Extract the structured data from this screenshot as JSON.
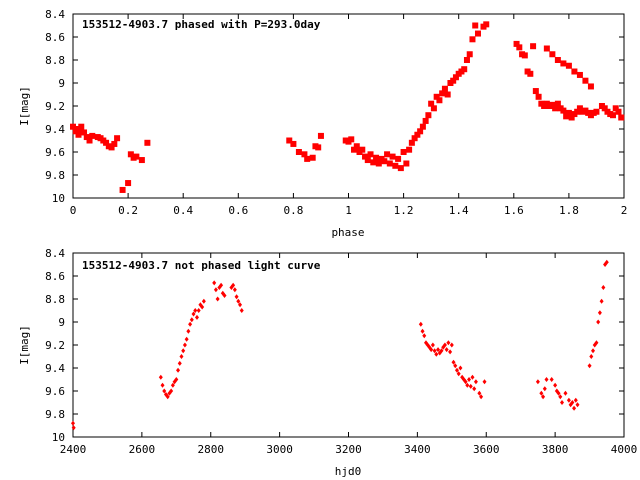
{
  "chart_data": [
    {
      "type": "scatter",
      "title": "153512-4903.7 phased with P=293.0day",
      "xlabel": "phase",
      "ylabel": "I[mag]",
      "xlim": [
        0,
        2
      ],
      "ylim": [
        8.4,
        10
      ],
      "y_inverted": true,
      "xticks": [
        "0",
        "0.2",
        "0.4",
        "0.6",
        "0.8",
        "1",
        "1.2",
        "1.4",
        "1.6",
        "1.8",
        "2"
      ],
      "yticks": [
        "8.4",
        "8.6",
        "8.8",
        "9",
        "9.2",
        "9.4",
        "9.6",
        "9.8",
        "10"
      ],
      "marker_color": "#ff0000",
      "marker_shape": "plus-square",
      "series": [
        {
          "x": [
            0.0,
            0.01,
            0.02,
            0.02,
            0.03,
            0.04,
            0.05,
            0.06,
            0.07,
            0.09,
            0.1,
            0.11,
            0.12,
            0.13,
            0.14,
            0.15,
            0.16,
            0.18,
            0.2,
            0.21,
            0.22,
            0.23,
            0.25,
            0.27,
            0.785,
            0.8,
            0.82,
            0.84,
            0.85,
            0.87,
            0.88,
            0.89,
            0.9,
            0.99,
            1.0,
            1.01,
            1.02,
            1.03,
            1.04,
            1.05,
            1.06,
            1.07,
            1.08,
            1.09,
            1.1,
            1.11,
            1.12,
            1.13,
            1.14,
            1.15,
            1.16,
            1.17,
            1.18,
            1.19,
            1.2,
            1.21,
            1.22,
            1.23,
            1.24,
            1.25,
            1.26,
            1.27,
            1.28,
            1.29,
            1.3,
            1.31,
            1.32,
            1.33,
            1.34,
            1.35,
            1.36,
            1.37,
            1.38,
            1.39,
            1.4,
            1.41,
            1.42,
            1.43,
            1.44,
            1.45,
            1.46,
            1.47,
            1.49,
            1.5,
            1.61,
            1.62,
            1.63,
            1.64,
            1.65,
            1.66,
            1.67,
            1.68,
            1.69,
            1.7,
            1.71,
            1.72,
            1.73,
            1.74,
            1.75,
            1.76,
            1.77,
            1.78,
            1.79,
            1.8,
            1.81,
            1.82,
            1.83,
            1.84,
            1.85,
            1.86,
            1.87,
            1.88,
            1.89,
            1.9,
            1.92,
            1.93,
            1.94,
            1.95,
            1.96,
            1.97,
            1.98,
            1.99,
            1.72,
            1.74,
            1.76,
            1.78,
            1.8,
            1.82,
            1.84,
            1.86,
            1.88
          ],
          "y": [
            9.38,
            9.42,
            9.4,
            9.45,
            9.38,
            9.43,
            9.47,
            9.5,
            9.46,
            9.47,
            9.48,
            9.5,
            9.52,
            9.55,
            9.56,
            9.53,
            9.48,
            9.93,
            9.87,
            9.62,
            9.65,
            9.64,
            9.67,
            9.52,
            9.5,
            9.53,
            9.6,
            9.62,
            9.66,
            9.65,
            9.55,
            9.56,
            9.46,
            9.5,
            9.51,
            9.49,
            9.58,
            9.55,
            9.6,
            9.58,
            9.64,
            9.67,
            9.62,
            9.69,
            9.65,
            9.7,
            9.66,
            9.68,
            9.62,
            9.7,
            9.64,
            9.72,
            9.66,
            9.74,
            9.6,
            9.7,
            9.58,
            9.52,
            9.48,
            9.45,
            9.42,
            9.38,
            9.33,
            9.28,
            9.18,
            9.22,
            9.12,
            9.15,
            9.09,
            9.05,
            9.1,
            9.0,
            8.98,
            8.95,
            8.92,
            8.9,
            8.88,
            8.8,
            8.75,
            8.62,
            8.5,
            8.57,
            8.51,
            8.49,
            8.66,
            8.69,
            8.75,
            8.76,
            8.9,
            8.92,
            8.68,
            9.07,
            9.12,
            9.18,
            9.2,
            9.18,
            9.2,
            9.19,
            9.22,
            9.18,
            9.22,
            9.24,
            9.29,
            9.26,
            9.3,
            9.27,
            9.25,
            9.22,
            9.25,
            9.24,
            9.26,
            9.28,
            9.26,
            9.25,
            9.2,
            9.22,
            9.25,
            9.27,
            9.28,
            9.22,
            9.25,
            9.3,
            8.7,
            8.75,
            8.8,
            8.83,
            8.85,
            8.9,
            8.93,
            8.98,
            9.03
          ]
        }
      ]
    },
    {
      "type": "scatter",
      "title": "153512-4903.7 not phased light curve",
      "xlabel": "hjd0",
      "ylabel": "I[mag]",
      "xlim": [
        2400,
        4000
      ],
      "ylim": [
        8.4,
        10
      ],
      "y_inverted": true,
      "xticks": [
        "2400",
        "2600",
        "2800",
        "3000",
        "3200",
        "3400",
        "3600",
        "3800",
        "4000"
      ],
      "yticks": [
        "8.4",
        "8.6",
        "8.8",
        "9",
        "9.2",
        "9.4",
        "9.6",
        "9.8",
        "10"
      ],
      "marker_color": "#ff0000",
      "marker_shape": "diamond",
      "series": [
        {
          "x": [
            2400,
            2402,
            2655,
            2660,
            2665,
            2670,
            2675,
            2680,
            2685,
            2690,
            2695,
            2700,
            2705,
            2710,
            2715,
            2720,
            2725,
            2730,
            2735,
            2740,
            2745,
            2750,
            2755,
            2760,
            2765,
            2770,
            2775,
            2780,
            2810,
            2815,
            2820,
            2825,
            2830,
            2835,
            2840,
            2860,
            2865,
            2870,
            2875,
            2880,
            2885,
            2890,
            3410,
            3415,
            3420,
            3425,
            3430,
            3435,
            3440,
            3445,
            3450,
            3455,
            3460,
            3465,
            3470,
            3475,
            3480,
            3485,
            3490,
            3495,
            3500,
            3505,
            3510,
            3515,
            3520,
            3525,
            3530,
            3535,
            3540,
            3545,
            3550,
            3555,
            3560,
            3565,
            3570,
            3580,
            3585,
            3595,
            3750,
            3760,
            3765,
            3770,
            3775,
            3790,
            3800,
            3805,
            3810,
            3815,
            3820,
            3830,
            3840,
            3845,
            3850,
            3855,
            3860,
            3865,
            3900,
            3905,
            3910,
            3915,
            3920,
            3925,
            3930,
            3935,
            3940,
            3945,
            3950
          ],
          "y": [
            9.88,
            9.92,
            9.48,
            9.55,
            9.6,
            9.63,
            9.65,
            9.62,
            9.6,
            9.55,
            9.52,
            9.5,
            9.42,
            9.36,
            9.3,
            9.25,
            9.2,
            9.15,
            9.08,
            9.02,
            8.98,
            8.93,
            8.9,
            8.96,
            8.9,
            8.85,
            8.87,
            8.82,
            8.66,
            8.72,
            8.8,
            8.7,
            8.68,
            8.75,
            8.77,
            8.7,
            8.68,
            8.72,
            8.78,
            8.82,
            8.85,
            8.9,
            9.02,
            9.08,
            9.12,
            9.18,
            9.2,
            9.22,
            9.24,
            9.2,
            9.25,
            9.28,
            9.24,
            9.27,
            9.25,
            9.22,
            9.2,
            9.24,
            9.18,
            9.26,
            9.2,
            9.35,
            9.38,
            9.42,
            9.45,
            9.4,
            9.48,
            9.5,
            9.52,
            9.55,
            9.5,
            9.56,
            9.48,
            9.58,
            9.52,
            9.62,
            9.65,
            9.52,
            9.52,
            9.62,
            9.65,
            9.58,
            9.5,
            9.5,
            9.55,
            9.6,
            9.62,
            9.65,
            9.7,
            9.62,
            9.68,
            9.72,
            9.7,
            9.75,
            9.68,
            9.72,
            9.38,
            9.3,
            9.25,
            9.2,
            9.18,
            9.0,
            8.92,
            8.82,
            8.7,
            8.5,
            8.48
          ]
        }
      ]
    }
  ]
}
